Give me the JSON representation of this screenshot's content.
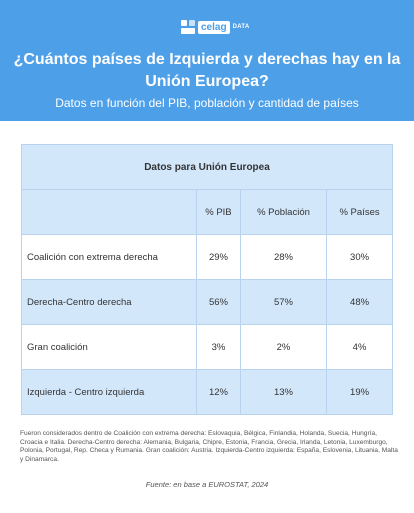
{
  "brand": {
    "name": "celag",
    "suffix": "DATA",
    "logo_icon": "celag-logo-icon"
  },
  "title": "¿Cuántos países de Izquierda y derechas hay en la Unión Europea?",
  "subtitle": "Datos en función del PIB, población y cantidad de países",
  "colors": {
    "header": "#4d9fe8",
    "row_alt": "#d3e7fb",
    "border": "#b9d3ef"
  },
  "chart_data": {
    "type": "table",
    "title": "Datos para Unión Europea",
    "columns": [
      "",
      "% PIB",
      "% Población",
      "% Países"
    ],
    "rows": [
      {
        "label": "Coalición con extrema derecha",
        "values": [
          "29%",
          "28%",
          "30%"
        ]
      },
      {
        "label": "Derecha-Centro derecha",
        "values": [
          "56%",
          "57%",
          "48%"
        ]
      },
      {
        "label": "Gran coalición",
        "values": [
          "3%",
          "2%",
          "4%"
        ]
      },
      {
        "label": "Izquierda - Centro izquierda",
        "values": [
          "12%",
          "13%",
          "19%"
        ]
      }
    ]
  },
  "note": "Fueron considerados dentro de Coalición con extrema derecha: Eslovaquia, Bélgica, Finlandia, Holanda, Suecia, Hungría, Croacia e Italia. Derecha-Centro derecha: Alemania, Bulgaria, Chipre, Estonia, Francia, Grecia, Irlanda, Letonia, Luxemburgo, Polonia, Portugal, Rep. Checa y Rumania. Gran coalición: Austria. Izquierda-Centro izquierda: España, Eslovenia, Lituania, Malta y Dinamarca.",
  "source": "Fuente: en base a EUROSTAT, 2024"
}
